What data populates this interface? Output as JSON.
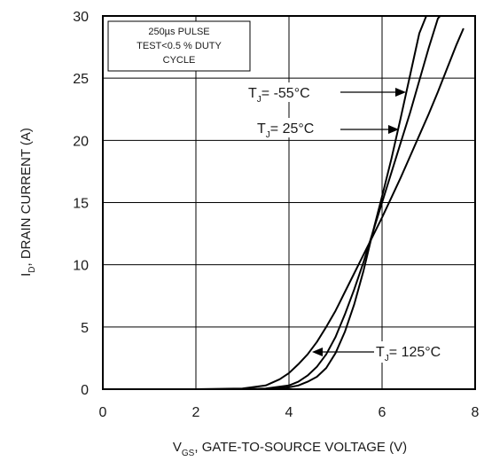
{
  "chart_data": {
    "type": "line",
    "xlabel_main": "V",
    "xlabel_sub": "GS",
    "xlabel_rest": ", GATE-TO-SOURCE VOLTAGE (V)",
    "ylabel_main": "I",
    "ylabel_sub": "D",
    "ylabel_rest": ", DRAIN CURRENT (A)",
    "xlim": [
      0,
      8
    ],
    "ylim": [
      0,
      30
    ],
    "xticks": [
      0,
      2,
      4,
      6,
      8
    ],
    "yticks": [
      0,
      5,
      10,
      15,
      20,
      25,
      30
    ],
    "grid": true,
    "note_lines": [
      "250µs PULSE",
      "TEST<0.5 % DUTY",
      "CYCLE"
    ],
    "series": [
      {
        "name": "TJ = -55°C",
        "label_main": "T",
        "label_sub": "J",
        "label_rest": "= -55°C",
        "x": [
          0,
          2.0,
          3.0,
          3.5,
          4.0,
          4.2,
          4.4,
          4.6,
          4.8,
          5.0,
          5.2,
          5.4,
          5.6,
          5.8,
          6.0,
          6.2,
          6.4,
          6.6,
          6.8,
          6.95
        ],
        "y": [
          0,
          0,
          0,
          0.02,
          0.15,
          0.3,
          0.6,
          1.0,
          1.7,
          2.9,
          4.6,
          6.8,
          9.5,
          12.6,
          15.5,
          18.5,
          21.8,
          25.2,
          28.6,
          30
        ]
      },
      {
        "name": "TJ = 25°C",
        "label_main": "T",
        "label_sub": "J",
        "label_rest": "= 25°C",
        "x": [
          0,
          2.0,
          3.0,
          3.5,
          4.0,
          4.2,
          4.4,
          4.6,
          4.8,
          5.0,
          5.2,
          5.4,
          5.6,
          5.8,
          6.0,
          6.2,
          6.4,
          6.6,
          6.8,
          7.0,
          7.2,
          7.25
        ],
        "y": [
          0,
          0,
          0,
          0.05,
          0.3,
          0.6,
          1.1,
          1.8,
          2.8,
          4.2,
          6.0,
          8.0,
          10.2,
          12.6,
          15.0,
          17.4,
          19.8,
          22.2,
          24.8,
          27.4,
          29.8,
          30
        ]
      },
      {
        "name": "TJ = 125°C",
        "label_main": "T",
        "label_sub": "J",
        "label_rest": "= 125°C",
        "x": [
          0,
          2.0,
          3.0,
          3.5,
          3.8,
          4.0,
          4.2,
          4.4,
          4.6,
          4.8,
          5.0,
          5.2,
          5.4,
          5.6,
          5.8,
          6.0,
          6.2,
          6.4,
          6.6,
          6.8,
          7.0,
          7.2,
          7.4,
          7.6,
          7.75
        ],
        "y": [
          0,
          0,
          0.05,
          0.3,
          0.8,
          1.3,
          2.0,
          2.8,
          3.8,
          5.0,
          6.3,
          7.8,
          9.3,
          10.8,
          12.3,
          13.8,
          15.4,
          17.0,
          18.7,
          20.4,
          22.1,
          23.9,
          25.8,
          27.7,
          29.0
        ]
      }
    ],
    "colors": {
      "line": "#000000",
      "grid": "#000000"
    }
  }
}
